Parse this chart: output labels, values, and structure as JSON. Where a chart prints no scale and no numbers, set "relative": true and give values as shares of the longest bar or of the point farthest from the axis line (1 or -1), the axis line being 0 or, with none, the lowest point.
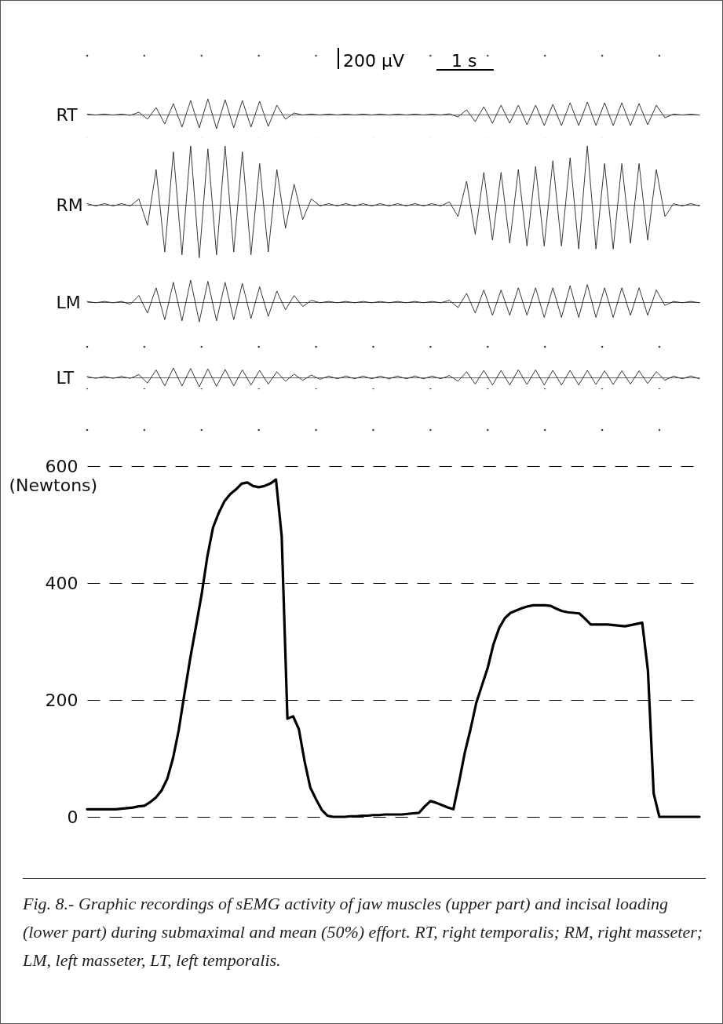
{
  "chart_data": [
    {
      "type": "line",
      "relative": true,
      "ylabel": "RT",
      "color": "#222222",
      "tick_labels": false,
      "annotations": [
        "200 µV",
        "1 s"
      ],
      "categories": [
        null,
        null,
        null,
        null,
        null,
        null,
        null,
        null,
        null,
        null,
        null,
        null,
        null,
        null,
        null,
        null,
        null,
        null,
        null,
        null,
        null,
        null,
        null,
        null,
        null,
        null,
        null,
        null,
        null,
        null,
        null,
        null,
        null,
        null,
        null,
        null,
        null,
        null,
        null,
        null,
        null,
        null,
        null,
        null,
        null,
        null,
        null,
        null,
        null,
        null,
        null,
        null,
        null,
        null,
        null,
        null,
        null,
        null,
        null,
        null,
        null,
        null,
        null,
        null,
        null,
        null,
        null,
        null,
        null,
        null,
        null,
        null
      ],
      "values": [
        0.03,
        -0.03,
        0.03,
        -0.03,
        0.03,
        -0.05,
        0.15,
        -0.3,
        0.45,
        -0.6,
        0.7,
        -0.8,
        0.9,
        -0.85,
        1,
        -0.9,
        0.95,
        -0.85,
        0.9,
        -0.8,
        0.85,
        -0.75,
        0.6,
        -0.3,
        0.1,
        -0.03,
        0.03,
        -0.03,
        0.03,
        -0.03,
        0.03,
        -0.03,
        0.03,
        -0.03,
        0.03,
        -0.03,
        0.03,
        -0.03,
        0.03,
        -0.03,
        0.03,
        -0.03,
        0.05,
        -0.15,
        0.3,
        -0.45,
        0.5,
        -0.55,
        0.6,
        -0.55,
        0.6,
        -0.65,
        0.6,
        -0.7,
        0.65,
        -0.7,
        0.75,
        -0.7,
        0.8,
        -0.7,
        0.75,
        -0.7,
        0.75,
        -0.7,
        0.7,
        -0.65,
        0.6,
        -0.2,
        0.03,
        -0.03,
        0.03,
        -0.03
      ]
    },
    {
      "type": "line",
      "relative": true,
      "ylabel": "RM",
      "color": "#222222",
      "tick_labels": false,
      "categories": [
        null,
        null,
        null,
        null,
        null,
        null,
        null,
        null,
        null,
        null,
        null,
        null,
        null,
        null,
        null,
        null,
        null,
        null,
        null,
        null,
        null,
        null,
        null,
        null,
        null,
        null,
        null,
        null,
        null,
        null,
        null,
        null,
        null,
        null,
        null,
        null,
        null,
        null,
        null,
        null,
        null,
        null,
        null,
        null,
        null,
        null,
        null,
        null,
        null,
        null,
        null,
        null,
        null,
        null,
        null,
        null,
        null,
        null,
        null,
        null,
        null,
        null,
        null,
        null,
        null,
        null,
        null,
        null,
        null,
        null,
        null,
        null
      ],
      "values": [
        0.02,
        -0.02,
        0.02,
        -0.02,
        0.02,
        -0.02,
        0.1,
        -0.35,
        0.6,
        -0.8,
        0.9,
        -0.85,
        1,
        -0.9,
        0.95,
        -0.85,
        1,
        -0.8,
        0.9,
        -0.85,
        0.7,
        -0.8,
        0.6,
        -0.4,
        0.35,
        -0.25,
        0.1,
        -0.02,
        0.02,
        -0.02,
        0.02,
        -0.02,
        0.02,
        -0.02,
        0.02,
        -0.02,
        0.02,
        -0.02,
        0.02,
        -0.02,
        0.02,
        -0.02,
        0.05,
        -0.2,
        0.4,
        -0.5,
        0.55,
        -0.6,
        0.55,
        -0.65,
        0.6,
        -0.7,
        0.65,
        -0.7,
        0.75,
        -0.7,
        0.8,
        -0.75,
        1,
        -0.75,
        0.7,
        -0.75,
        0.7,
        -0.65,
        0.7,
        -0.6,
        0.6,
        -0.2,
        0.02,
        -0.02,
        0.02,
        -0.02
      ]
    },
    {
      "type": "line",
      "relative": true,
      "ylabel": "LM",
      "color": "#222222",
      "tick_labels": false,
      "categories": [
        null,
        null,
        null,
        null,
        null,
        null,
        null,
        null,
        null,
        null,
        null,
        null,
        null,
        null,
        null,
        null,
        null,
        null,
        null,
        null,
        null,
        null,
        null,
        null,
        null,
        null,
        null,
        null,
        null,
        null,
        null,
        null,
        null,
        null,
        null,
        null,
        null,
        null,
        null,
        null,
        null,
        null,
        null,
        null,
        null,
        null,
        null,
        null,
        null,
        null,
        null,
        null,
        null,
        null,
        null,
        null,
        null,
        null,
        null,
        null,
        null,
        null,
        null,
        null,
        null,
        null,
        null,
        null,
        null,
        null,
        null,
        null
      ],
      "values": [
        0.03,
        -0.03,
        0.03,
        -0.03,
        0.03,
        -0.1,
        0.3,
        -0.5,
        0.65,
        -0.8,
        0.9,
        -0.85,
        1,
        -0.9,
        0.95,
        -0.85,
        0.9,
        -0.8,
        0.85,
        -0.75,
        0.7,
        -0.65,
        0.5,
        -0.35,
        0.3,
        -0.2,
        0.08,
        -0.03,
        0.03,
        -0.03,
        0.03,
        -0.03,
        0.03,
        -0.03,
        0.03,
        -0.03,
        0.03,
        -0.03,
        0.03,
        -0.03,
        0.03,
        -0.03,
        0.08,
        -0.25,
        0.4,
        -0.5,
        0.55,
        -0.6,
        0.55,
        -0.6,
        0.65,
        -0.6,
        0.65,
        -0.7,
        0.65,
        -0.7,
        0.75,
        -0.7,
        0.8,
        -0.7,
        0.65,
        -0.7,
        0.65,
        -0.6,
        0.65,
        -0.6,
        0.55,
        -0.15,
        0.03,
        -0.03,
        0.03,
        -0.03
      ]
    },
    {
      "type": "line",
      "relative": true,
      "ylabel": "LT",
      "color": "#222222",
      "tick_labels": false,
      "categories": [
        null,
        null,
        null,
        null,
        null,
        null,
        null,
        null,
        null,
        null,
        null,
        null,
        null,
        null,
        null,
        null,
        null,
        null,
        null,
        null,
        null,
        null,
        null,
        null,
        null,
        null,
        null,
        null,
        null,
        null,
        null,
        null,
        null,
        null,
        null,
        null,
        null,
        null,
        null,
        null,
        null,
        null,
        null,
        null,
        null,
        null,
        null,
        null,
        null,
        null,
        null,
        null,
        null,
        null,
        null,
        null,
        null,
        null,
        null,
        null,
        null,
        null,
        null,
        null,
        null,
        null,
        null,
        null,
        null,
        null,
        null,
        null
      ],
      "values": [
        0.1,
        -0.1,
        0.1,
        -0.1,
        0.1,
        -0.1,
        0.3,
        -0.6,
        0.8,
        -0.9,
        1,
        -0.9,
        0.95,
        -1,
        0.9,
        -0.95,
        0.85,
        -0.9,
        0.8,
        -0.8,
        0.75,
        -0.7,
        0.6,
        -0.4,
        0.35,
        -0.3,
        0.25,
        -0.2,
        0.15,
        -0.15,
        0.15,
        -0.15,
        0.15,
        -0.15,
        0.15,
        -0.15,
        0.15,
        -0.15,
        0.15,
        -0.15,
        0.15,
        -0.15,
        0.2,
        -0.4,
        0.6,
        -0.7,
        0.75,
        -0.8,
        0.75,
        -0.8,
        0.8,
        -0.75,
        0.8,
        -0.8,
        0.75,
        -0.8,
        0.75,
        -0.8,
        0.75,
        -0.75,
        0.7,
        -0.75,
        0.7,
        -0.7,
        0.7,
        -0.65,
        0.6,
        -0.3,
        0.15,
        -0.15,
        0.15,
        -0.15
      ]
    },
    {
      "type": "line",
      "ylabel": "(Newtons)",
      "color": "#000000",
      "ylim": [
        0,
        600
      ],
      "yticks": [
        0,
        200,
        400,
        600
      ],
      "grid": "y",
      "tick_labels": "y",
      "annotations": [
        "Fig. 8.- Graphic recordings of sEMG activity of jaw muscles (upper part) and incisal loading (lower part) during submaximal and mean (50%) effort. RT, right temporalis; RM, right masseter; LM, left masseter, LT, left temporalis."
      ],
      "categories": [
        null,
        null,
        null,
        null,
        null,
        null,
        null,
        null,
        null,
        null,
        null,
        null,
        null,
        null,
        null,
        null,
        null,
        null,
        null,
        null,
        null,
        null,
        null,
        null,
        null,
        null,
        null,
        null,
        null,
        null,
        null,
        null,
        null,
        null,
        null,
        null,
        null,
        null,
        null,
        null,
        null,
        null,
        null,
        null,
        null,
        null,
        null,
        null,
        null,
        null,
        null,
        null,
        null,
        null,
        null,
        null,
        null,
        null,
        null,
        null,
        null,
        null,
        null,
        null,
        null,
        null,
        null,
        null,
        null,
        null,
        null,
        null,
        null,
        null,
        null,
        null,
        null,
        null,
        null,
        null,
        null,
        null,
        null,
        null,
        null,
        null,
        null,
        null,
        null,
        null,
        null,
        null,
        null,
        null,
        null,
        null,
        null,
        null,
        null,
        null,
        null,
        null,
        null,
        null,
        null,
        null,
        null,
        null
      ],
      "values": [
        13,
        13,
        13,
        13,
        13,
        13,
        14,
        15,
        16,
        18,
        19,
        25,
        33,
        45,
        65,
        100,
        148,
        210,
        270,
        325,
        380,
        445,
        495,
        520,
        540,
        552,
        560,
        570,
        572,
        566,
        564,
        566,
        570,
        577,
        480,
        168,
        172,
        150,
        95,
        50,
        30,
        12,
        2,
        0,
        0,
        0,
        1,
        1,
        2,
        2,
        3,
        3,
        4,
        4,
        4,
        4,
        5,
        6,
        7,
        18,
        27,
        24,
        20,
        16,
        13,
        60,
        110,
        150,
        195,
        225,
        255,
        295,
        323,
        340,
        349,
        353,
        357,
        360,
        362,
        362,
        362,
        361,
        356,
        352,
        350,
        349,
        348,
        339,
        329,
        329,
        329,
        329,
        328,
        327,
        326,
        328,
        330,
        332,
        250,
        40,
        0,
        0,
        0,
        0,
        0,
        0,
        0,
        0
      ]
    }
  ]
}
